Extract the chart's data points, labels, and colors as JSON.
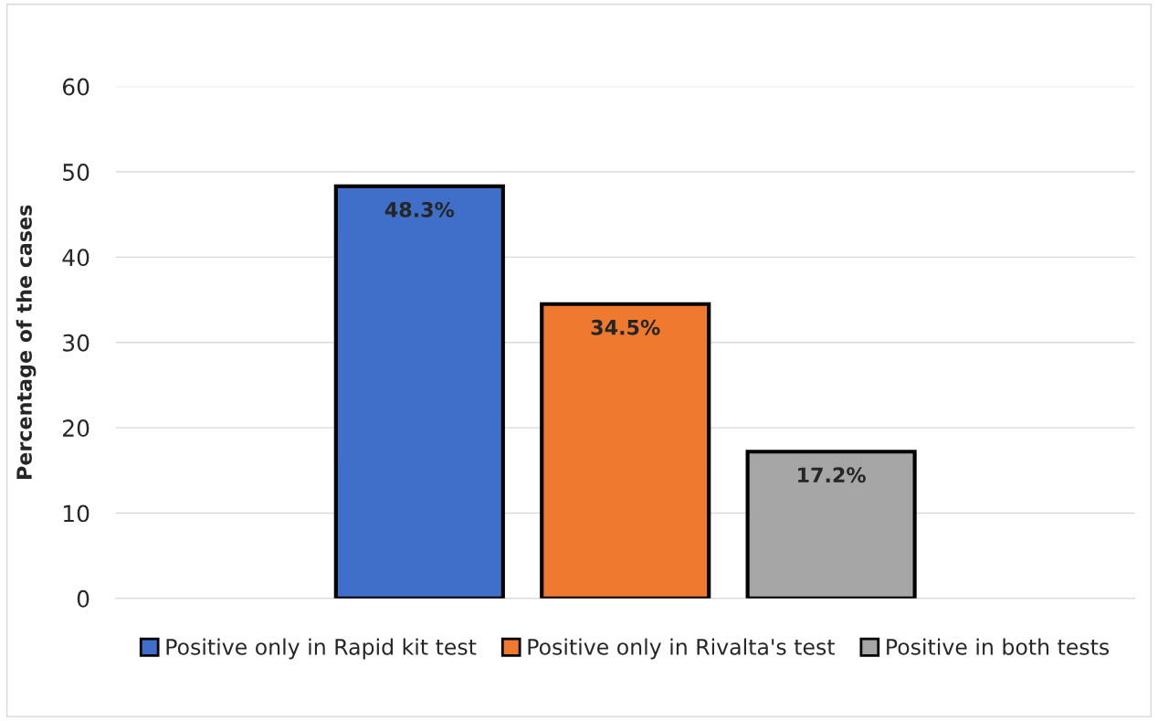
{
  "chart_data": {
    "type": "bar",
    "ylabel": "Percentage of the cases",
    "categories": [
      null
    ],
    "series": [
      {
        "name": "Positive only in Rapid kit test",
        "color": "#3f6fc9",
        "values": [
          48.3
        ],
        "value_labels": [
          "48.3%"
        ]
      },
      {
        "name": "Positive only in Rivalta's test",
        "color": "#ef7a2f",
        "values": [
          34.5
        ],
        "value_labels": [
          "34.5%"
        ]
      },
      {
        "name": "Positive in both tests",
        "color": "#a6a6a6",
        "values": [
          17.2
        ],
        "value_labels": [
          "17.2%"
        ]
      }
    ],
    "ylim": [
      0,
      60
    ],
    "yticks": [
      0,
      10,
      20,
      30,
      40,
      50,
      60
    ],
    "grid": "y",
    "legend": "bottom"
  }
}
